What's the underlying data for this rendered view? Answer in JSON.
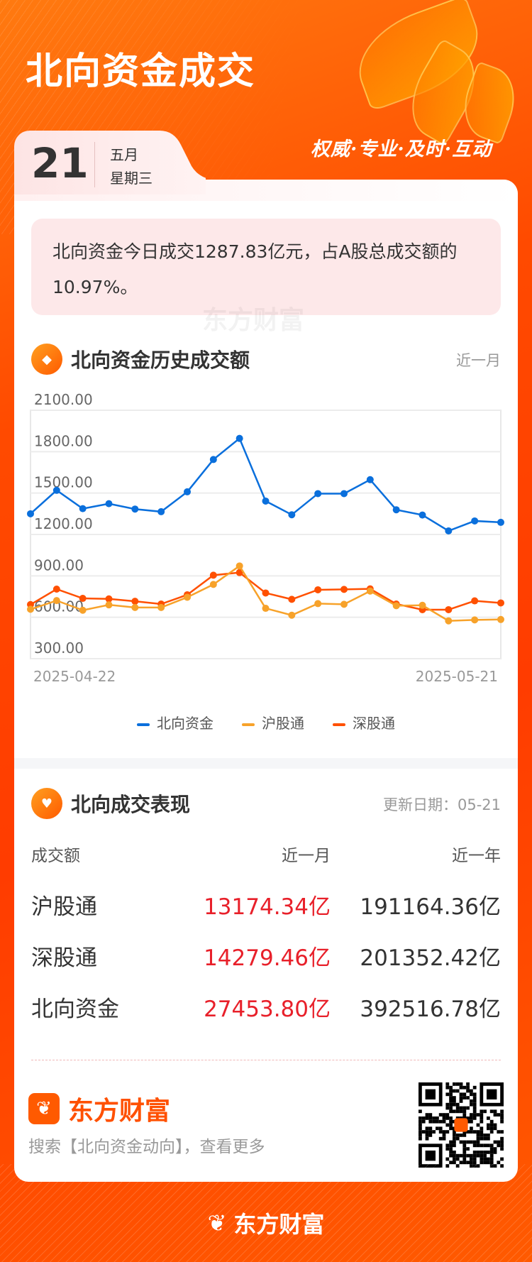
{
  "header": {
    "title": "北向资金成交",
    "slogan": "权威·专业·及时·互动",
    "date_day": "21",
    "date_month": "五月",
    "date_weekday": "星期三"
  },
  "summary": {
    "text": "北向资金今日成交1287.83亿元，占A股总成交额的10.97%。",
    "watermark": "东方财富"
  },
  "history": {
    "title": "北向资金历史成交额",
    "range": "近一月",
    "icon": "coin-icon"
  },
  "chart_data": {
    "type": "line",
    "x": [
      "2025-04-22",
      "",
      "",
      "",
      "",
      "",
      "",
      "",
      "",
      "",
      "",
      "",
      "",
      "",
      "",
      "",
      "",
      "",
      "2025-05-21"
    ],
    "x_tick_labels": [
      "2025-04-22",
      "2025-05-21"
    ],
    "y_tick_labels": [
      "2100.00",
      "1800.00",
      "1500.00",
      "1200.00",
      "900.00",
      "600.00",
      "300.00"
    ],
    "ylim": [
      300,
      2100
    ],
    "grid": true,
    "legend": "bottom",
    "series": [
      {
        "name": "北向资金",
        "color": "#0a6fdc",
        "values": [
          1350,
          1520,
          1387,
          1423,
          1384,
          1365,
          1509,
          1743,
          1896,
          1442,
          1343,
          1496,
          1496,
          1597,
          1379,
          1341,
          1226,
          1298,
          1287.83
        ]
      },
      {
        "name": "沪股通",
        "color": "#f7a22a",
        "values": [
          658,
          721,
          651,
          690,
          671,
          671,
          745,
          838,
          972,
          665,
          615,
          699,
          694,
          790,
          684,
          687,
          574,
          581,
          584
        ]
      },
      {
        "name": "深股通",
        "color": "#ff5000",
        "values": [
          692,
          804,
          737,
          733,
          716,
          696,
          763,
          905,
          924,
          776,
          730,
          799,
          802,
          806,
          696,
          655,
          655,
          719,
          704
        ]
      }
    ]
  },
  "performance": {
    "title": "北向成交表现",
    "update": "更新日期：05-21",
    "icon": "handshake-heart-icon",
    "columns": [
      "成交额",
      "近一月",
      "近一年"
    ],
    "rows": [
      {
        "name": "沪股通",
        "month": "13174.34亿",
        "year": "191164.36亿"
      },
      {
        "name": "深股通",
        "month": "14279.46亿",
        "year": "201352.42亿"
      },
      {
        "name": "北向资金",
        "month": "27453.80亿",
        "year": "392516.78亿"
      }
    ],
    "accent": "#e8202a"
  },
  "footer": {
    "brand": "东方财富",
    "search_hint": "搜索【北向资金动向】，查看更多",
    "bottom_brand": "东方财富"
  }
}
